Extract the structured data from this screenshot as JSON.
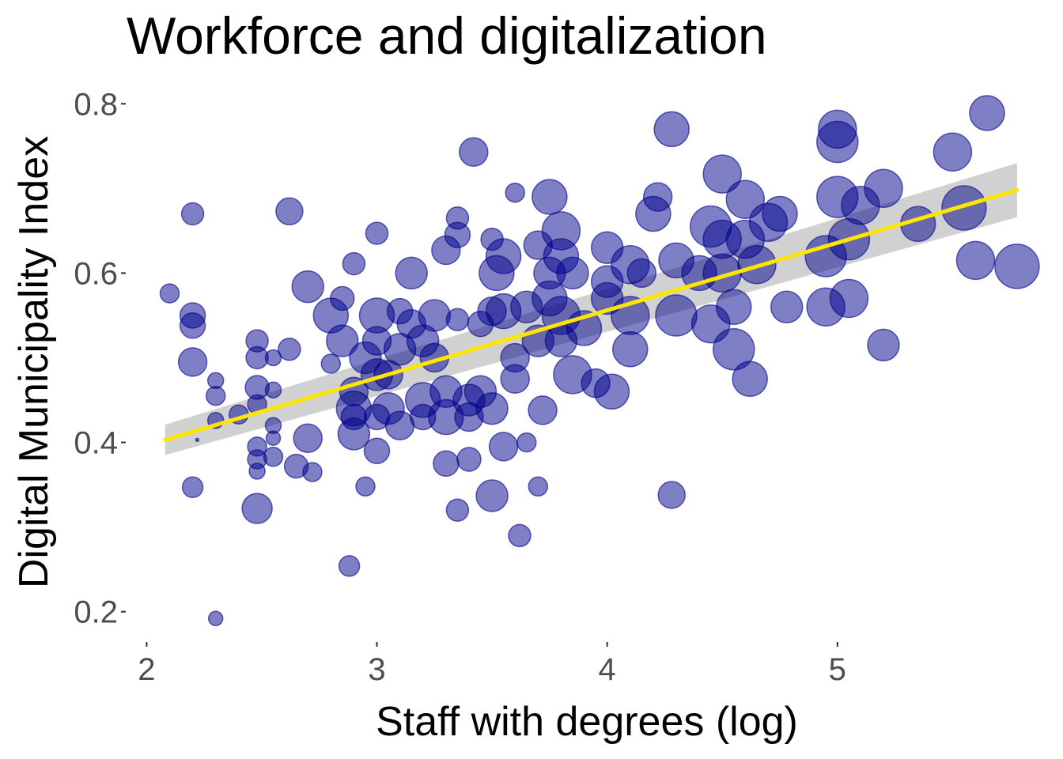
{
  "chart_data": {
    "type": "scatter",
    "title": "Workforce and digitalization",
    "xlabel": "Staff with degrees (log)",
    "ylabel": "Digital Municipality Index",
    "xlim": [
      1.93,
      5.88
    ],
    "ylim": [
      0.168,
      0.832
    ],
    "xticks": [
      2,
      3,
      4,
      5
    ],
    "yticks": [
      0.2,
      0.4,
      0.6,
      0.8
    ],
    "xtick_labels": [
      "2",
      "3",
      "4",
      "5"
    ],
    "ytick_labels": [
      "0.2",
      "0.4",
      "0.6",
      "0.8"
    ],
    "grid": false,
    "legend": "none",
    "point_color": "#00008B",
    "point_opacity": 0.5,
    "size_range": [
      2,
      30
    ],
    "trend": {
      "x": [
        2.08,
        5.78
      ],
      "y": [
        0.403,
        0.698
      ],
      "ci_low": [
        0.385,
        0.666
      ],
      "ci_high": [
        0.421,
        0.73
      ],
      "color": "#FFE600",
      "band_color": "#BEBEBE"
    },
    "points": [
      [
        2.1,
        0.576,
        12
      ],
      [
        2.2,
        0.67,
        14
      ],
      [
        2.2,
        0.55,
        16
      ],
      [
        2.2,
        0.538,
        16
      ],
      [
        2.2,
        0.495,
        18
      ],
      [
        2.2,
        0.347,
        13
      ],
      [
        2.22,
        0.403,
        2
      ],
      [
        2.3,
        0.473,
        10
      ],
      [
        2.3,
        0.455,
        12
      ],
      [
        2.3,
        0.426,
        10
      ],
      [
        2.3,
        0.192,
        9
      ],
      [
        2.4,
        0.433,
        12
      ],
      [
        2.48,
        0.52,
        14
      ],
      [
        2.48,
        0.5,
        14
      ],
      [
        2.48,
        0.465,
        15
      ],
      [
        2.48,
        0.445,
        12
      ],
      [
        2.48,
        0.395,
        12
      ],
      [
        2.48,
        0.38,
        12
      ],
      [
        2.48,
        0.366,
        10
      ],
      [
        2.48,
        0.322,
        19
      ],
      [
        2.55,
        0.5,
        10
      ],
      [
        2.55,
        0.462,
        10
      ],
      [
        2.55,
        0.42,
        10
      ],
      [
        2.55,
        0.405,
        9
      ],
      [
        2.55,
        0.383,
        12
      ],
      [
        2.62,
        0.673,
        17
      ],
      [
        2.62,
        0.51,
        14
      ],
      [
        2.65,
        0.372,
        15
      ],
      [
        2.7,
        0.584,
        20
      ],
      [
        2.72,
        0.365,
        12
      ],
      [
        2.7,
        0.405,
        18
      ],
      [
        2.8,
        0.55,
        22
      ],
      [
        2.8,
        0.493,
        12
      ],
      [
        2.85,
        0.52,
        20
      ],
      [
        2.85,
        0.57,
        15
      ],
      [
        2.9,
        0.46,
        18
      ],
      [
        2.9,
        0.44,
        22
      ],
      [
        2.9,
        0.41,
        20
      ],
      [
        2.9,
        0.43,
        16
      ],
      [
        2.9,
        0.611,
        14
      ],
      [
        2.88,
        0.254,
        13
      ],
      [
        2.95,
        0.348,
        12
      ],
      [
        2.95,
        0.5,
        20
      ],
      [
        3.0,
        0.55,
        22
      ],
      [
        3.0,
        0.52,
        18
      ],
      [
        3.0,
        0.48,
        20
      ],
      [
        3.0,
        0.43,
        16
      ],
      [
        3.0,
        0.39,
        16
      ],
      [
        3.0,
        0.647,
        14
      ],
      [
        3.05,
        0.48,
        18
      ],
      [
        3.05,
        0.44,
        20
      ],
      [
        3.1,
        0.555,
        16
      ],
      [
        3.1,
        0.51,
        20
      ],
      [
        3.1,
        0.42,
        18
      ],
      [
        3.15,
        0.54,
        18
      ],
      [
        3.15,
        0.6,
        20
      ],
      [
        3.2,
        0.52,
        20
      ],
      [
        3.2,
        0.45,
        22
      ],
      [
        3.2,
        0.43,
        16
      ],
      [
        3.25,
        0.55,
        20
      ],
      [
        3.25,
        0.5,
        18
      ],
      [
        3.3,
        0.627,
        18
      ],
      [
        3.3,
        0.46,
        20
      ],
      [
        3.3,
        0.43,
        22
      ],
      [
        3.3,
        0.375,
        16
      ],
      [
        3.35,
        0.665,
        14
      ],
      [
        3.35,
        0.645,
        16
      ],
      [
        3.35,
        0.545,
        14
      ],
      [
        3.35,
        0.32,
        14
      ],
      [
        3.4,
        0.45,
        20
      ],
      [
        3.4,
        0.43,
        18
      ],
      [
        3.4,
        0.38,
        15
      ],
      [
        3.42,
        0.743,
        18
      ],
      [
        3.45,
        0.54,
        16
      ],
      [
        3.45,
        0.46,
        20
      ],
      [
        3.5,
        0.64,
        14
      ],
      [
        3.5,
        0.555,
        18
      ],
      [
        3.5,
        0.44,
        20
      ],
      [
        3.5,
        0.337,
        20
      ],
      [
        3.52,
        0.6,
        22
      ],
      [
        3.55,
        0.62,
        22
      ],
      [
        3.55,
        0.555,
        22
      ],
      [
        3.55,
        0.395,
        18
      ],
      [
        3.6,
        0.695,
        12
      ],
      [
        3.6,
        0.5,
        18
      ],
      [
        3.6,
        0.475,
        18
      ],
      [
        3.62,
        0.29,
        14
      ],
      [
        3.65,
        0.56,
        20
      ],
      [
        3.65,
        0.4,
        12
      ],
      [
        3.7,
        0.633,
        18
      ],
      [
        3.7,
        0.348,
        12
      ],
      [
        3.7,
        0.52,
        20
      ],
      [
        3.72,
        0.438,
        18
      ],
      [
        3.75,
        0.69,
        22
      ],
      [
        3.75,
        0.6,
        20
      ],
      [
        3.75,
        0.57,
        22
      ],
      [
        3.8,
        0.65,
        24
      ],
      [
        3.8,
        0.62,
        22
      ],
      [
        3.8,
        0.55,
        24
      ],
      [
        3.8,
        0.52,
        20
      ],
      [
        3.85,
        0.48,
        24
      ],
      [
        3.85,
        0.6,
        20
      ],
      [
        3.9,
        0.535,
        22
      ],
      [
        3.95,
        0.47,
        18
      ],
      [
        4.0,
        0.63,
        20
      ],
      [
        4.0,
        0.59,
        20
      ],
      [
        4.0,
        0.57,
        20
      ],
      [
        4.02,
        0.46,
        22
      ],
      [
        4.1,
        0.61,
        24
      ],
      [
        4.1,
        0.55,
        24
      ],
      [
        4.1,
        0.51,
        22
      ],
      [
        4.15,
        0.6,
        18
      ],
      [
        4.2,
        0.67,
        22
      ],
      [
        4.22,
        0.69,
        18
      ],
      [
        4.28,
        0.77,
        22
      ],
      [
        4.28,
        0.338,
        17
      ],
      [
        4.3,
        0.615,
        22
      ],
      [
        4.3,
        0.55,
        26
      ],
      [
        4.4,
        0.6,
        22
      ],
      [
        4.45,
        0.655,
        26
      ],
      [
        4.45,
        0.54,
        24
      ],
      [
        4.5,
        0.717,
        24
      ],
      [
        4.5,
        0.64,
        24
      ],
      [
        4.5,
        0.6,
        24
      ],
      [
        4.55,
        0.51,
        26
      ],
      [
        4.55,
        0.56,
        22
      ],
      [
        4.6,
        0.687,
        24
      ],
      [
        4.6,
        0.64,
        24
      ],
      [
        4.62,
        0.475,
        22
      ],
      [
        4.65,
        0.61,
        24
      ],
      [
        4.7,
        0.66,
        24
      ],
      [
        4.75,
        0.67,
        22
      ],
      [
        4.78,
        0.56,
        20
      ],
      [
        4.95,
        0.56,
        24
      ],
      [
        4.95,
        0.62,
        26
      ],
      [
        5.0,
        0.77,
        24
      ],
      [
        5.0,
        0.755,
        26
      ],
      [
        5.0,
        0.69,
        26
      ],
      [
        5.05,
        0.64,
        26
      ],
      [
        5.05,
        0.57,
        24
      ],
      [
        5.1,
        0.68,
        24
      ],
      [
        5.2,
        0.7,
        24
      ],
      [
        5.2,
        0.515,
        20
      ],
      [
        5.35,
        0.658,
        22
      ],
      [
        5.5,
        0.743,
        24
      ],
      [
        5.55,
        0.677,
        28
      ],
      [
        5.6,
        0.615,
        24
      ],
      [
        5.65,
        0.789,
        22
      ],
      [
        5.78,
        0.608,
        28
      ]
    ]
  }
}
